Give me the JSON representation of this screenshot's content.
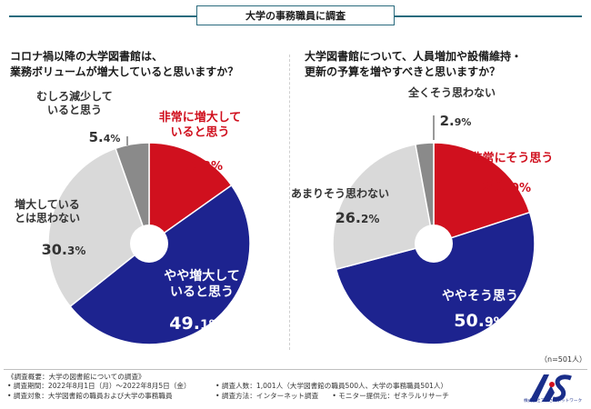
{
  "header": {
    "title": "大学の事務職員に調査"
  },
  "chart_data": [
    {
      "type": "pie",
      "question": [
        "コロナ禍以降の大学図書館は、",
        "業務ボリュームが増大していると思いますか？"
      ],
      "slices": [
        {
          "label": [
            "非常に増大して",
            "いると思う"
          ],
          "value": 15.2,
          "display": [
            "15.",
            "2%"
          ],
          "color": "#d0101e"
        },
        {
          "label": [
            "やや増大して",
            "いると思う"
          ],
          "value": 49.1,
          "display": [
            "49.",
            "1%"
          ],
          "color": "#1d238f"
        },
        {
          "label": [
            "増大している",
            "とは思わない"
          ],
          "value": 30.3,
          "display": [
            "30.",
            "3%"
          ],
          "color": "#d9d9d9"
        },
        {
          "label": [
            "むしろ減少して",
            "いると思う"
          ],
          "value": 5.4,
          "display": [
            "5.",
            "4%"
          ],
          "color": "#8a8a8a"
        }
      ]
    },
    {
      "type": "pie",
      "question": [
        "大学図書館について、人員増加や設備維持・",
        "更新の予算を増やすべきと思いますか？"
      ],
      "slices": [
        {
          "label": [
            "非常にそう思う"
          ],
          "value": 20.0,
          "display": [
            "20.",
            "0%"
          ],
          "color": "#d0101e"
        },
        {
          "label": [
            "ややそう思う"
          ],
          "value": 50.9,
          "display": [
            "50.",
            "9%"
          ],
          "color": "#1d238f"
        },
        {
          "label": [
            "あまりそう思わない"
          ],
          "value": 26.2,
          "display": [
            "26.",
            "2%"
          ],
          "color": "#d9d9d9"
        },
        {
          "label": [
            "全くそう思わない"
          ],
          "value": 2.9,
          "display": [
            "2.",
            "9%"
          ],
          "color": "#8a8a8a"
        }
      ]
    }
  ],
  "note": {
    "n": "（n=501人）"
  },
  "footer": {
    "line1": "《調査概要：大学の図書館についての調査》",
    "line2": "• 調査期間：2022年8月1日（月）～2022年8月5日（金）",
    "line3": "• 調査対象：大学図書館の職員および大学の事務職員",
    "line4": "• 調査人数：1,001人（大学図書館の職員500人、大学の事務職員501人）",
    "line5": "• 調査方法：インターネット調査　　• モニター提供元：ゼネラルリサーチ"
  },
  "logo": {
    "mark": "AS",
    "company": "株式会社アクセスネットワーク"
  }
}
